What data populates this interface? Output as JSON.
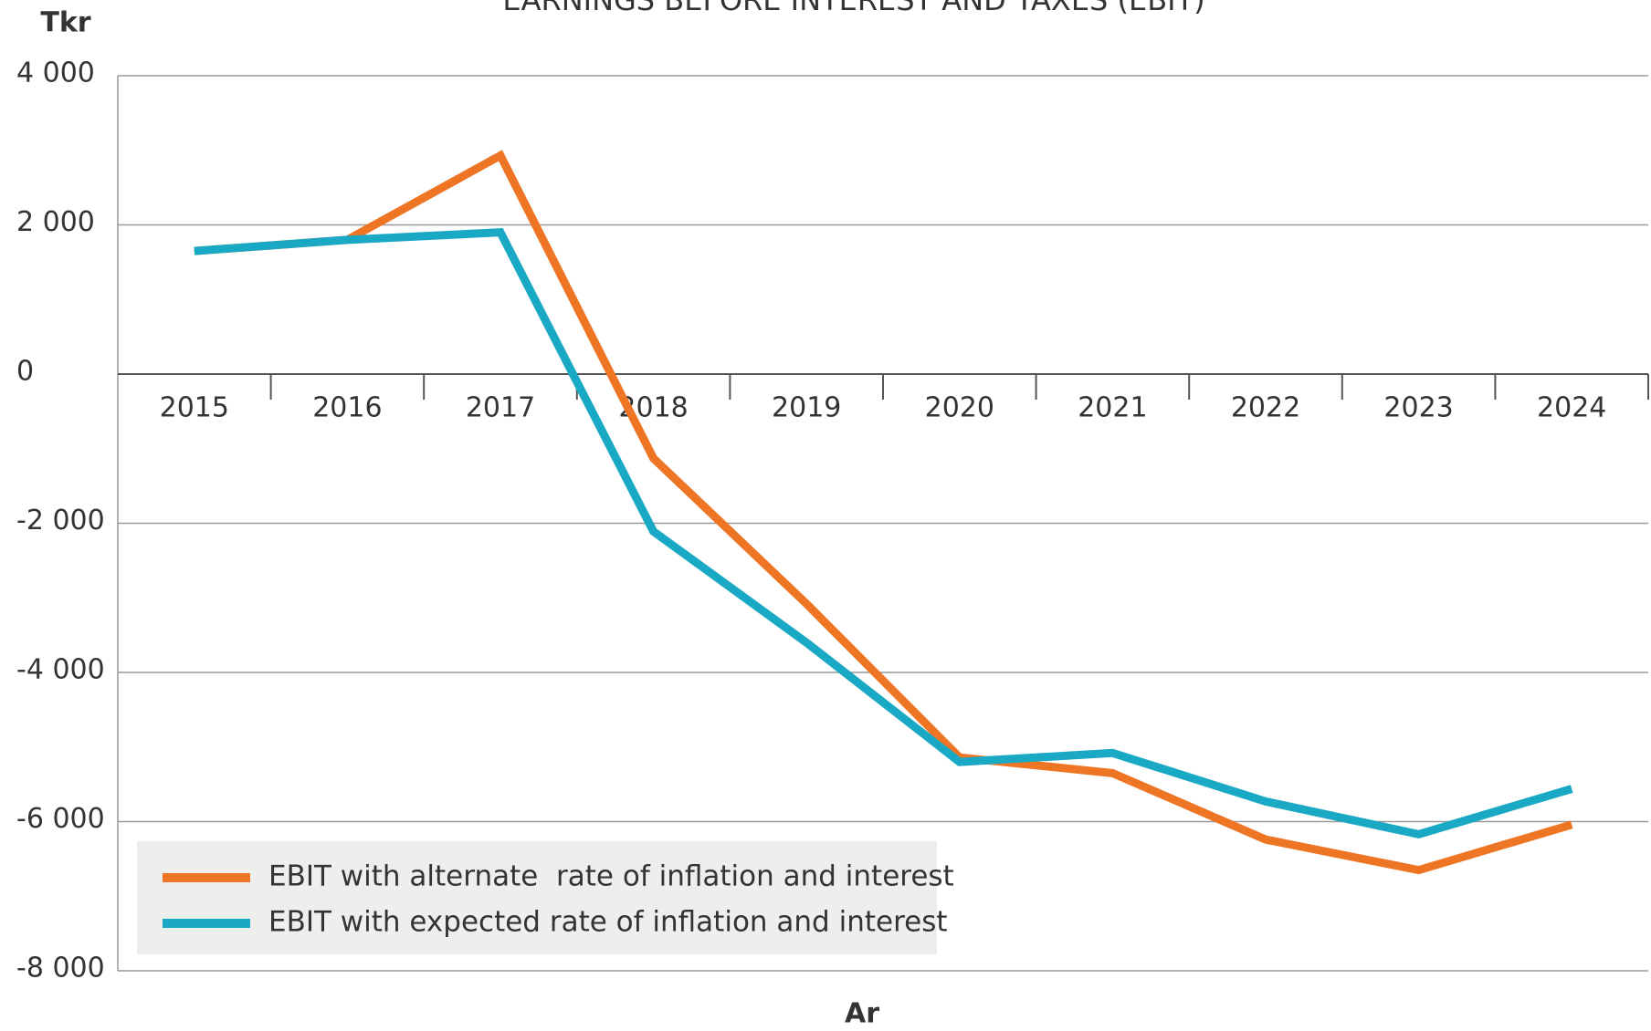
{
  "chart_data": {
    "type": "line",
    "title": "EARNINGS BEFORE INTEREST AND TAXES (EBIT)",
    "y_label": "Tkr",
    "x_label": "Ar",
    "categories": [
      "2015",
      "2016",
      "2017",
      "2018",
      "2019",
      "2020",
      "2021",
      "2022",
      "2023",
      "2024"
    ],
    "series": [
      {
        "name": "EBIT with alternate  rate of inflation and interest",
        "color": "#ee7523",
        "values": [
          1650,
          1800,
          2930,
          -1130,
          -3080,
          -5140,
          -5350,
          -6240,
          -6650,
          -6040
        ]
      },
      {
        "name": "EBIT with expected rate of inflation and interest",
        "color": "#1aa9c4",
        "values": [
          1650,
          1800,
          1900,
          -2110,
          -3600,
          -5200,
          -5080,
          -5730,
          -6170,
          -5560
        ]
      }
    ],
    "ylim": [
      -8000,
      4000
    ],
    "yticks": [
      {
        "value": -8000,
        "label": "-8 000"
      },
      {
        "value": -6000,
        "label": "-6 000"
      },
      {
        "value": -4000,
        "label": "-4 000"
      },
      {
        "value": -2000,
        "label": "-2 000"
      },
      0,
      {
        "value": 2000,
        "label": "2 000"
      },
      {
        "value": 4000,
        "label": "4 000"
      }
    ],
    "grid": true,
    "legend": "bottom-left"
  }
}
